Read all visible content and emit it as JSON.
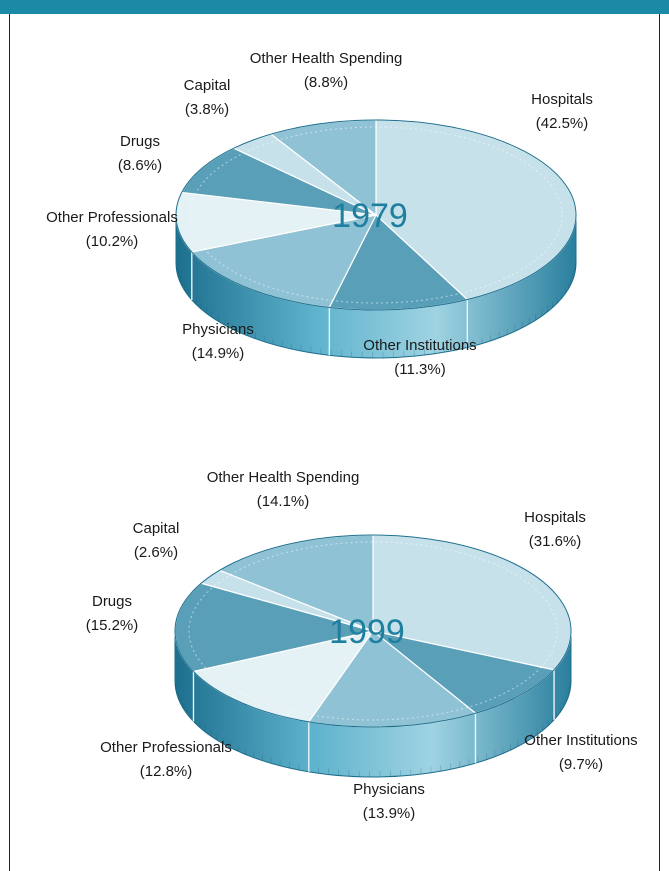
{
  "colors": {
    "band": "#1a8aa6",
    "year_text": "#1f7f9e",
    "coin_dark": "#5a9fb8",
    "coin_mid": "#8fc2d4",
    "coin_light": "#c6e1ea",
    "coin_lightest": "#e4f1f5"
  },
  "chart_data": [
    {
      "type": "pie",
      "title": "1979",
      "slices": [
        {
          "label": "Hospitals",
          "value_text": "(42.5%)",
          "value": 42.5
        },
        {
          "label": "Other Institutions",
          "value_text": "(11.3%)",
          "value": 11.3
        },
        {
          "label": "Physicians",
          "value_text": "(14.9%)",
          "value": 14.9
        },
        {
          "label": "Other Professionals",
          "value_text": "(10.2%)",
          "value": 10.2
        },
        {
          "label": "Drugs",
          "value_text": "(8.6%)",
          "value": 8.6
        },
        {
          "label": "Capital",
          "value_text": "(3.8%)",
          "value": 3.8
        },
        {
          "label": "Other Health Spending",
          "value_text": "(8.8%)",
          "value": 8.8
        }
      ]
    },
    {
      "type": "pie",
      "title": "1999",
      "slices": [
        {
          "label": "Hospitals",
          "value_text": "(31.6%)",
          "value": 31.6
        },
        {
          "label": "Other Institutions",
          "value_text": "(9.7%)",
          "value": 9.7
        },
        {
          "label": "Physicians",
          "value_text": "(13.9%)",
          "value": 13.9
        },
        {
          "label": "Other Professionals",
          "value_text": "(12.8%)",
          "value": 12.8
        },
        {
          "label": "Drugs",
          "value_text": "(15.2%)",
          "value": 15.2
        },
        {
          "label": "Capital",
          "value_text": "(2.6%)",
          "value": 2.6
        },
        {
          "label": "Other Health Spending",
          "value_text": "(14.1%)",
          "value": 14.1
        }
      ]
    }
  ]
}
